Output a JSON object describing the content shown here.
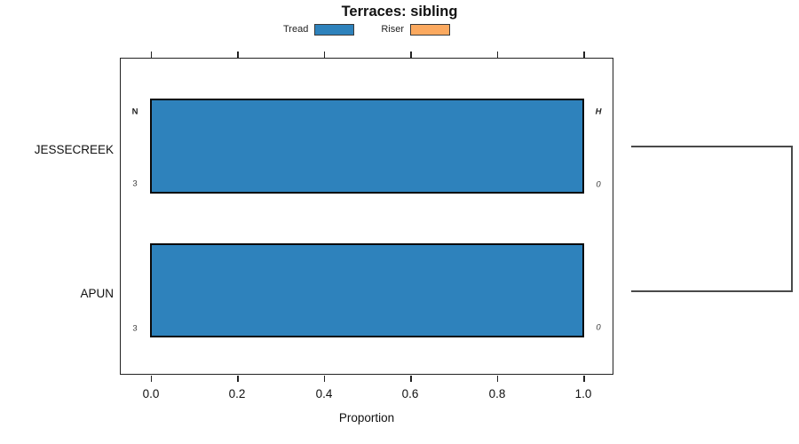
{
  "title": "Terraces: sibling",
  "legend": {
    "items": [
      {
        "label": "Tread",
        "color": "#2e82bc"
      },
      {
        "label": "Riser",
        "color": "#fba95f"
      }
    ]
  },
  "headers": {
    "n": "N",
    "h": "H"
  },
  "rows": [
    {
      "category": "JESSECREEK",
      "n": "3",
      "h": "0",
      "value": 1.0
    },
    {
      "category": "APUN",
      "n": "3",
      "h": "0",
      "value": 1.0
    }
  ],
  "axis": {
    "xlabel": "Proportion",
    "ticks": [
      "0.0",
      "0.2",
      "0.4",
      "0.6",
      "0.8",
      "1.0"
    ]
  },
  "chart_data": {
    "type": "bar",
    "orientation": "horizontal",
    "title": "Terraces: sibling",
    "categories": [
      "JESSECREEK",
      "APUN"
    ],
    "series": [
      {
        "name": "Tread",
        "color": "#2e82bc",
        "values": [
          1.0,
          1.0
        ]
      },
      {
        "name": "Riser",
        "color": "#fba95f",
        "values": [
          0.0,
          0.0
        ]
      }
    ],
    "xlabel": "Proportion",
    "xlim": [
      0,
      1
    ],
    "xticks": [
      0.0,
      0.2,
      0.4,
      0.6,
      0.8,
      1.0
    ],
    "grid": false,
    "legend_position": "top-center",
    "annotations": {
      "column_headers": [
        "N",
        "H"
      ],
      "rows": [
        {
          "category": "JESSECREEK",
          "N": 3,
          "H": 0
        },
        {
          "category": "APUN",
          "N": 3,
          "H": 0
        }
      ]
    },
    "right_bracket": {
      "connects": [
        "JESSECREEK",
        "APUN"
      ]
    }
  }
}
